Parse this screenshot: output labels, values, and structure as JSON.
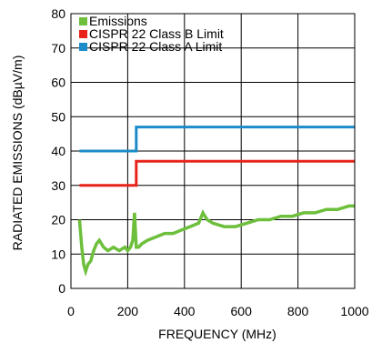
{
  "chart_data": {
    "type": "line",
    "title": "",
    "xlabel": "FREQUENCY (MHz)",
    "ylabel": "RADIATED EMISSIONS (dBµV/m)",
    "xlim": [
      0,
      1000
    ],
    "ylim": [
      0,
      80
    ],
    "x_ticks": [
      0,
      200,
      400,
      600,
      800,
      1000
    ],
    "y_ticks": [
      0,
      10,
      20,
      30,
      40,
      50,
      60,
      70,
      80
    ],
    "x_tick_labels": [
      "0",
      "200",
      "400",
      "600",
      "800",
      "1000"
    ],
    "y_tick_labels": [
      "0",
      "10",
      "20",
      "30",
      "40",
      "50",
      "60",
      "70",
      "80"
    ],
    "grid": true,
    "legend_position": "top-left",
    "series": [
      {
        "name": "Emissions",
        "color": "#6dbf3c",
        "x": [
          30,
          38,
          45,
          52,
          60,
          70,
          80,
          90,
          100,
          115,
          130,
          150,
          170,
          190,
          200,
          210,
          218,
          224,
          230,
          238,
          250,
          270,
          300,
          330,
          360,
          390,
          420,
          450,
          465,
          480,
          500,
          540,
          580,
          620,
          660,
          700,
          740,
          780,
          820,
          860,
          900,
          940,
          980,
          1000
        ],
        "y": [
          20,
          12,
          7,
          5,
          7,
          8,
          11,
          13,
          14,
          12,
          11,
          12,
          11,
          12,
          11,
          12,
          14,
          22,
          12,
          12,
          13,
          14,
          15,
          16,
          16,
          17,
          18,
          19,
          22,
          20,
          19,
          18,
          18,
          19,
          20,
          20,
          21,
          21,
          22,
          22,
          23,
          23,
          24,
          24
        ]
      },
      {
        "name": "CISPR 22 Class B Limit",
        "color": "#e8231a",
        "x": [
          30,
          230,
          230,
          1000
        ],
        "y": [
          30,
          30,
          37,
          37
        ]
      },
      {
        "name": "CISPR 22 Class A Limit",
        "color": "#1b8cc9",
        "x": [
          30,
          230,
          230,
          1000
        ],
        "y": [
          40,
          40,
          47,
          47
        ]
      }
    ]
  }
}
